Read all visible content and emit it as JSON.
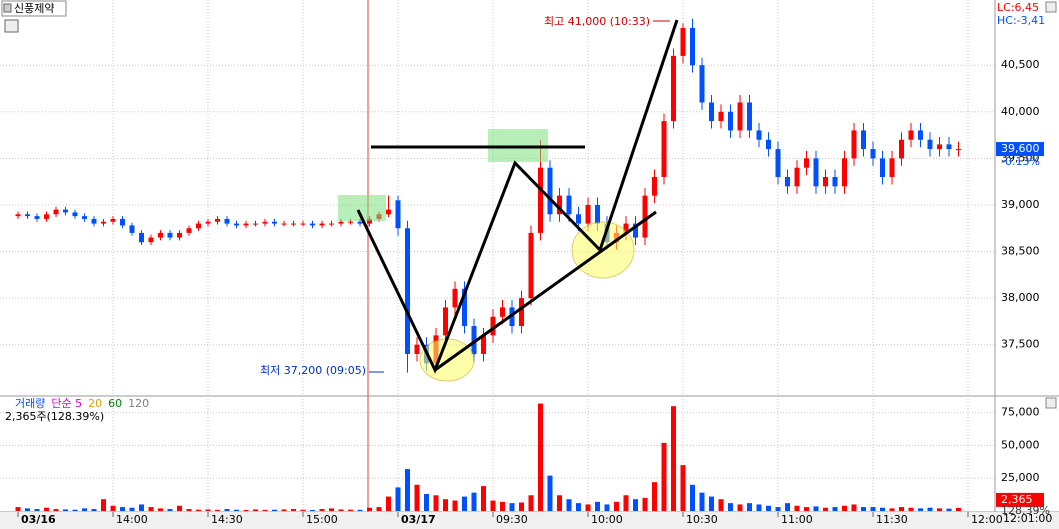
{
  "chart_data": {
    "type": "candlestick",
    "title": "신풍제약",
    "lc_label": "LC:6,45",
    "hc_label": "HC:-3,41",
    "up_color": "#ff0000",
    "down_color": "#0050ff",
    "grid": true,
    "categories": [
      "03/16",
      null,
      null,
      null,
      null,
      null,
      null,
      null,
      null,
      null,
      "14:00",
      null,
      null,
      null,
      null,
      null,
      null,
      null,
      null,
      null,
      "14:30",
      null,
      null,
      null,
      null,
      null,
      null,
      null,
      null,
      null,
      "15:00",
      null,
      null,
      null,
      null,
      null,
      null,
      null,
      null,
      null,
      "03/17",
      null,
      null,
      null,
      null,
      null,
      null,
      null,
      null,
      null,
      "09:30",
      null,
      null,
      null,
      null,
      null,
      null,
      null,
      null,
      null,
      "10:00",
      null,
      null,
      null,
      null,
      null,
      null,
      null,
      null,
      null,
      "10:30",
      null,
      null,
      null,
      null,
      null,
      null,
      null,
      null,
      null,
      "11:00",
      null,
      null,
      null,
      null,
      null,
      null,
      null,
      null,
      null,
      "11:30",
      null,
      null,
      null,
      null,
      null,
      null,
      null,
      null,
      null,
      "12:00"
    ],
    "open": [
      38880,
      38900,
      38880,
      38850,
      38900,
      38950,
      38920,
      38880,
      38850,
      38800,
      38820,
      38850,
      38780,
      38700,
      38600,
      38650,
      38700,
      38650,
      38700,
      38750,
      38800,
      38820,
      38850,
      38800,
      38780,
      38800,
      38800,
      38820,
      38800,
      38800,
      38800,
      38800,
      38780,
      38800,
      38800,
      38820,
      38820,
      38800,
      38850,
      38900,
      39050,
      38750,
      37400,
      37500,
      37300,
      37600,
      37900,
      38100,
      37700,
      37400,
      37600,
      37800,
      37900,
      37700,
      38000,
      38700,
      39400,
      38900,
      39100,
      38900,
      38800,
      39000,
      38800,
      38600,
      38700,
      38800,
      38650,
      39100,
      39300,
      39900,
      40600,
      40900,
      40500,
      40100,
      39900,
      40000,
      39800,
      40100,
      39800,
      39700,
      39600,
      39300,
      39200,
      39400,
      39500,
      39200,
      39300,
      39200,
      39500,
      39800,
      39600,
      39500,
      39300,
      39500,
      39700,
      39800,
      39700,
      39600,
      39650,
      39600,
      null
    ],
    "high": [
      38930,
      38930,
      38910,
      38930,
      38980,
      38980,
      38950,
      38910,
      38880,
      38850,
      38880,
      38880,
      38810,
      38730,
      38680,
      38730,
      38730,
      38730,
      38780,
      38830,
      38850,
      38880,
      38880,
      38830,
      38830,
      38830,
      38850,
      38850,
      38830,
      38830,
      38830,
      38830,
      38830,
      38830,
      38850,
      38850,
      38850,
      38880,
      38930,
      39100,
      39100,
      38830,
      37580,
      37580,
      37680,
      37980,
      38180,
      38180,
      37780,
      37680,
      37880,
      37980,
      37980,
      38080,
      38780,
      39700,
      39480,
      39180,
      39180,
      38980,
      39080,
      39080,
      38880,
      38780,
      38880,
      38880,
      39180,
      39380,
      39980,
      40680,
      40950,
      41000,
      40580,
      40180,
      40080,
      40080,
      40180,
      40180,
      39880,
      39780,
      39680,
      39380,
      39480,
      39580,
      39580,
      39380,
      39380,
      39580,
      39880,
      39880,
      39680,
      39580,
      39580,
      39780,
      39880,
      39880,
      39780,
      39730,
      39730,
      39680,
      null
    ],
    "low": [
      38850,
      38850,
      38820,
      38820,
      38870,
      38890,
      38850,
      38820,
      38770,
      38770,
      38790,
      38750,
      38670,
      38570,
      38570,
      38620,
      38620,
      38620,
      38670,
      38720,
      38770,
      38790,
      38770,
      38750,
      38750,
      38770,
      38770,
      38770,
      38770,
      38770,
      38770,
      38750,
      38750,
      38770,
      38770,
      38790,
      38770,
      38770,
      38820,
      38870,
      38670,
      37200,
      37320,
      37220,
      37220,
      37520,
      37820,
      37620,
      37320,
      37320,
      37520,
      37720,
      37620,
      37620,
      37920,
      38620,
      38820,
      38820,
      38820,
      38720,
      38720,
      38720,
      38520,
      38520,
      38620,
      38570,
      38570,
      39020,
      39220,
      39820,
      40520,
      40420,
      40020,
      39820,
      39820,
      39720,
      39720,
      39720,
      39620,
      39520,
      39220,
      39120,
      39120,
      39320,
      39120,
      39120,
      39120,
      39120,
      39420,
      39520,
      39420,
      39220,
      39220,
      39420,
      39620,
      39620,
      39520,
      39520,
      39520,
      39520,
      null
    ],
    "close": [
      38900,
      38880,
      38850,
      38900,
      38950,
      38920,
      38880,
      38850,
      38800,
      38820,
      38850,
      38780,
      38700,
      38600,
      38650,
      38700,
      38650,
      38700,
      38750,
      38800,
      38820,
      38850,
      38800,
      38780,
      38800,
      38800,
      38820,
      38800,
      38800,
      38800,
      38800,
      38780,
      38800,
      38800,
      38820,
      38820,
      38800,
      38850,
      38900,
      38950,
      38750,
      37400,
      37500,
      37300,
      37600,
      37900,
      38100,
      37700,
      37400,
      37600,
      37800,
      37900,
      37700,
      38000,
      38700,
      39400,
      38900,
      39100,
      38900,
      38800,
      39000,
      38800,
      38600,
      38700,
      38800,
      38650,
      39100,
      39300,
      39900,
      40600,
      40900,
      40500,
      40100,
      39900,
      40000,
      39800,
      40100,
      39800,
      39700,
      39600,
      39300,
      39200,
      39400,
      39500,
      39200,
      39300,
      39200,
      39500,
      39800,
      39600,
      39500,
      39300,
      39500,
      39700,
      39800,
      39700,
      39600,
      39650,
      39600,
      39600,
      null
    ],
    "volume": [
      3000,
      2000,
      1500,
      2500,
      1500,
      1200,
      1000,
      2000,
      1500,
      9000,
      4000,
      3000,
      2500,
      5000,
      3000,
      2000,
      1500,
      4000,
      1500,
      1000,
      1200,
      900,
      1500,
      1000,
      800,
      1200,
      900,
      1000,
      1200,
      1500,
      1000,
      800,
      1500,
      2000,
      1200,
      1000,
      900,
      2500,
      3000,
      11000,
      18000,
      32000,
      20000,
      13000,
      12000,
      9000,
      8000,
      11000,
      14000,
      19000,
      8000,
      7000,
      6000,
      6500,
      12000,
      82000,
      27000,
      12000,
      9000,
      6000,
      5000,
      7000,
      5000,
      7000,
      12000,
      9000,
      10000,
      22000,
      52000,
      80000,
      35000,
      20000,
      14000,
      11000,
      9000,
      6000,
      5000,
      6000,
      5000,
      4000,
      3000,
      6000,
      4000,
      3000,
      3500,
      2500,
      3000,
      4000,
      5000,
      3000,
      3000,
      2500,
      2000,
      3000,
      2500,
      2000,
      2500,
      2000,
      1800,
      2365,
      null
    ],
    "ylim": [
      36960,
      41200
    ],
    "yticks": [
      {
        "value": 37500,
        "label": "37,500"
      },
      {
        "value": 38000,
        "label": "38,000"
      },
      {
        "value": 38500,
        "label": "38,500"
      },
      {
        "value": 39000,
        "label": "39,000"
      },
      {
        "value": 39500,
        "label": "39,500"
      },
      {
        "value": 40000,
        "label": "40,000"
      },
      {
        "value": 40500,
        "label": "40,500"
      }
    ],
    "volume_ylim": [
      0,
      87000
    ],
    "volume_yticks": [
      {
        "value": 25000,
        "label": "25,000"
      },
      {
        "value": 50000,
        "label": "50,000"
      },
      {
        "value": 75000,
        "label": "75,000"
      }
    ],
    "last_price": {
      "value": 39600,
      "label": "39,600"
    },
    "last_change": "-0.13%",
    "last_volume": {
      "value": 2365,
      "label": "2,365"
    },
    "last_volume_ratio": "128.39%",
    "high_annotation": "최고 41,000 (10:33)",
    "low_annotation": "최저 37,200 (09:05)",
    "volume_legend": [
      "거래량",
      "단순 5",
      "20",
      "60",
      "120"
    ],
    "volume_legend_colors": [
      "#0050ff",
      "#d000d0",
      "#e0a000",
      "#008000",
      "#808080"
    ],
    "volume_info": "2,365주(128.39%)",
    "time_label": "12:01:00"
  }
}
